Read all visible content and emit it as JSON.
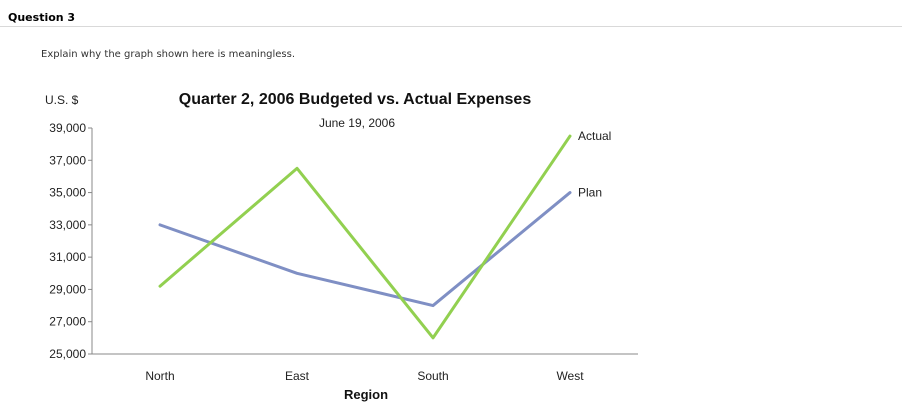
{
  "question": {
    "title": "Question 3",
    "prompt": "Explain why the graph shown here is meaningless."
  },
  "chart_data": {
    "type": "line",
    "title": "Quarter 2, 2006 Budgeted vs. Actual Expenses",
    "subtitle": "June 19, 2006",
    "xlabel": "Region",
    "ylabel": "U.S. $",
    "categories": [
      "North",
      "East",
      "South",
      "West"
    ],
    "ylim": [
      25000,
      39000
    ],
    "yticks": [
      "25,000",
      "27,000",
      "29,000",
      "31,000",
      "33,000",
      "35,000",
      "37,000",
      "39,000"
    ],
    "ytick_values": [
      25000,
      27000,
      29000,
      31000,
      33000,
      35000,
      37000,
      39000
    ],
    "grid": false,
    "series": [
      {
        "name": "Actual",
        "values": [
          29200,
          36500,
          26000,
          38500
        ],
        "color": "#92d050"
      },
      {
        "name": "Plan",
        "values": [
          33000,
          30000,
          28000,
          35000
        ],
        "color": "#7f8fc4"
      }
    ]
  }
}
